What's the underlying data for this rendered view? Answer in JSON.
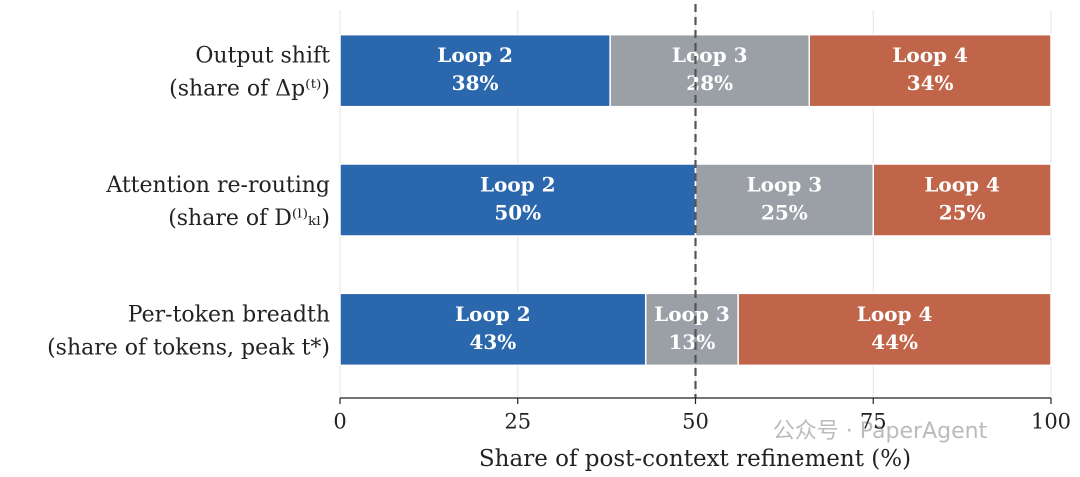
{
  "chart_data": {
    "type": "stacked_barh",
    "categories": [
      [
        "Output shift",
        "(share of Δp⁽ᵗ⁾)"
      ],
      [
        "Attention re-routing",
        "(share of D⁽ˡ⁾ₖₗ)"
      ],
      [
        "Per-token breadth",
        "(share of tokens, peak t*)"
      ]
    ],
    "series": [
      {
        "name": "Loop 2",
        "color": "#2b67ad",
        "values": [
          38,
          50,
          43
        ],
        "value_labels": [
          "38%",
          "50%",
          "43%"
        ]
      },
      {
        "name": "Loop 3",
        "color": "#9aa0a6",
        "values": [
          28,
          25,
          13
        ],
        "value_labels": [
          "28%",
          "25%",
          "13%"
        ]
      },
      {
        "name": "Loop 4",
        "color": "#c0654a",
        "values": [
          34,
          25,
          44
        ],
        "value_labels": [
          "34%",
          "25%",
          "44%"
        ]
      }
    ],
    "xlim": [
      0,
      100
    ],
    "xticks": [
      0,
      25,
      50,
      75,
      100
    ],
    "grid": true,
    "reference_line": 50,
    "xlabel": "Share of post-context refinement (%)",
    "watermark": "公众号 · PaperAgent"
  }
}
